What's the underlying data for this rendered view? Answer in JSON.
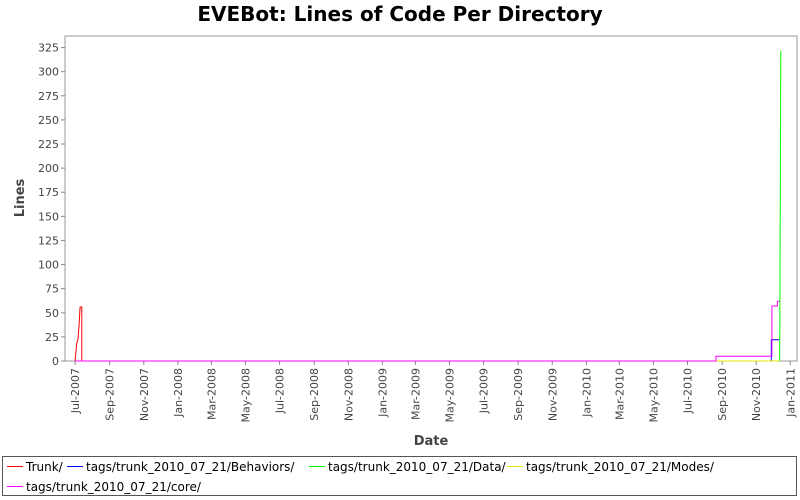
{
  "chart_data": {
    "type": "line",
    "title": "EVEBot: Lines of Code Per Directory",
    "xlabel": "Date",
    "ylabel": "Lines",
    "x_range": [
      "2007-06-13",
      "2011-01-13"
    ],
    "ylim": [
      0,
      337
    ],
    "y_ticks": [
      0,
      25,
      50,
      75,
      100,
      125,
      150,
      175,
      200,
      225,
      250,
      275,
      300,
      325
    ],
    "x_ticks": [
      {
        "date": "2007-07-01",
        "label": "Jul-2007"
      },
      {
        "date": "2007-09-01",
        "label": "Sep-2007"
      },
      {
        "date": "2007-11-01",
        "label": "Nov-2007"
      },
      {
        "date": "2008-01-01",
        "label": "Jan-2008"
      },
      {
        "date": "2008-03-01",
        "label": "Mar-2008"
      },
      {
        "date": "2008-05-01",
        "label": "May-2008"
      },
      {
        "date": "2008-07-01",
        "label": "Jul-2008"
      },
      {
        "date": "2008-09-01",
        "label": "Sep-2008"
      },
      {
        "date": "2008-11-01",
        "label": "Nov-2008"
      },
      {
        "date": "2009-01-01",
        "label": "Jan-2009"
      },
      {
        "date": "2009-03-01",
        "label": "Mar-2009"
      },
      {
        "date": "2009-05-01",
        "label": "May-2009"
      },
      {
        "date": "2009-07-01",
        "label": "Jul-2009"
      },
      {
        "date": "2009-09-01",
        "label": "Sep-2009"
      },
      {
        "date": "2009-11-01",
        "label": "Nov-2009"
      },
      {
        "date": "2010-01-01",
        "label": "Jan-2010"
      },
      {
        "date": "2010-03-01",
        "label": "Mar-2010"
      },
      {
        "date": "2010-05-01",
        "label": "May-2010"
      },
      {
        "date": "2010-07-01",
        "label": "Jul-2010"
      },
      {
        "date": "2010-09-01",
        "label": "Sep-2010"
      },
      {
        "date": "2010-11-01",
        "label": "Nov-2010"
      },
      {
        "date": "2011-01-01",
        "label": "Jan-2011"
      }
    ],
    "grid": false,
    "legend_position": "bottom",
    "series": [
      {
        "name": "Trunk/",
        "color": "#ff0000",
        "points": [
          {
            "x": "2007-07-01",
            "y": 0
          },
          {
            "x": "2007-07-04",
            "y": 18
          },
          {
            "x": "2007-07-06",
            "y": 22
          },
          {
            "x": "2007-07-08",
            "y": 36
          },
          {
            "x": "2007-07-10",
            "y": 56
          },
          {
            "x": "2007-07-13",
            "y": 56
          },
          {
            "x": "2007-07-13",
            "y": 0
          },
          {
            "x": "2010-12-13",
            "y": 0
          }
        ]
      },
      {
        "name": "tags/trunk_2010_07_21/Behaviors/",
        "color": "#0000ff",
        "points": [
          {
            "x": "2007-07-01",
            "y": 0
          },
          {
            "x": "2010-11-28",
            "y": 0
          },
          {
            "x": "2010-11-28",
            "y": 22
          },
          {
            "x": "2010-12-13",
            "y": 22
          }
        ]
      },
      {
        "name": "tags/trunk_2010_07_21/Data/",
        "color": "#00ff00",
        "points": [
          {
            "x": "2007-07-01",
            "y": 0
          },
          {
            "x": "2010-12-13",
            "y": 0
          },
          {
            "x": "2010-12-15",
            "y": 322
          }
        ]
      },
      {
        "name": "tags/trunk_2010_07_21/Modes/",
        "color": "#e6e600",
        "points": [
          {
            "x": "2007-07-01",
            "y": 0
          },
          {
            "x": "2010-12-13",
            "y": 0
          }
        ]
      },
      {
        "name": "tags/trunk_2010_07_21/core/",
        "color": "#ff00ff",
        "points": [
          {
            "x": "2007-07-01",
            "y": 0
          },
          {
            "x": "2010-08-21",
            "y": 0
          },
          {
            "x": "2010-08-21",
            "y": 5
          },
          {
            "x": "2010-11-29",
            "y": 5
          },
          {
            "x": "2010-11-29",
            "y": 57
          },
          {
            "x": "2010-12-09",
            "y": 57
          },
          {
            "x": "2010-12-09",
            "y": 62
          },
          {
            "x": "2010-12-13",
            "y": 62
          }
        ]
      }
    ]
  }
}
